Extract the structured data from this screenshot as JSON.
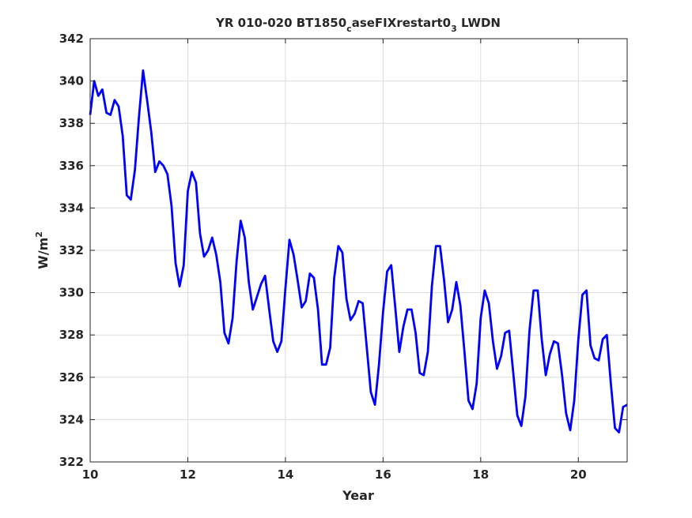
{
  "chart_data": {
    "type": "line",
    "title": {
      "main": "YR 010-020 BT1850",
      "sub1": "c",
      "mid": "aseFIXrestart0",
      "sub2": "3",
      "end": " LWDN"
    },
    "xlabel": "Year",
    "ylabel": {
      "base": "W/m",
      "sup": "2"
    },
    "xlim": [
      10,
      21
    ],
    "ylim": [
      322,
      342
    ],
    "xticks": [
      10,
      12,
      14,
      16,
      18,
      20
    ],
    "yticks": [
      322,
      324,
      326,
      328,
      330,
      332,
      334,
      336,
      338,
      340,
      342
    ],
    "grid": true,
    "series": [
      {
        "color": "#0000ff",
        "x": [
          10.0,
          10.083,
          10.167,
          10.25,
          10.333,
          10.417,
          10.5,
          10.583,
          10.667,
          10.75,
          10.833,
          10.917,
          11.0,
          11.083,
          11.167,
          11.25,
          11.333,
          11.417,
          11.5,
          11.583,
          11.667,
          11.75,
          11.833,
          11.917,
          12.0,
          12.083,
          12.167,
          12.25,
          12.333,
          12.417,
          12.5,
          12.583,
          12.667,
          12.75,
          12.833,
          12.917,
          13.0,
          13.083,
          13.167,
          13.25,
          13.333,
          13.417,
          13.5,
          13.583,
          13.667,
          13.75,
          13.833,
          13.917,
          14.0,
          14.083,
          14.167,
          14.25,
          14.333,
          14.417,
          14.5,
          14.583,
          14.667,
          14.75,
          14.833,
          14.917,
          15.0,
          15.083,
          15.167,
          15.25,
          15.333,
          15.417,
          15.5,
          15.583,
          15.667,
          15.75,
          15.833,
          15.917,
          16.0,
          16.083,
          16.167,
          16.25,
          16.333,
          16.417,
          16.5,
          16.583,
          16.667,
          16.75,
          16.833,
          16.917,
          17.0,
          17.083,
          17.167,
          17.25,
          17.333,
          17.417,
          17.5,
          17.583,
          17.667,
          17.75,
          17.833,
          17.917,
          18.0,
          18.083,
          18.167,
          18.25,
          18.333,
          18.417,
          18.5,
          18.583,
          18.667,
          18.75,
          18.833,
          18.917,
          19.0,
          19.083,
          19.167,
          19.25,
          19.333,
          19.417,
          19.5,
          19.583,
          19.667,
          19.75,
          19.833,
          19.917,
          20.0,
          20.083,
          20.167,
          20.25,
          20.333,
          20.417,
          20.5,
          20.583,
          20.667,
          20.75,
          20.833,
          20.917,
          21.0
        ],
        "y": [
          338.4,
          340.0,
          339.3,
          339.6,
          338.5,
          338.4,
          339.1,
          338.8,
          337.4,
          334.6,
          334.4,
          335.8,
          338.3,
          340.5,
          339.1,
          337.6,
          335.7,
          336.2,
          336.0,
          335.6,
          334.1,
          331.4,
          330.3,
          331.3,
          334.8,
          335.7,
          335.2,
          332.8,
          331.7,
          332.0,
          332.6,
          331.8,
          330.5,
          328.1,
          327.6,
          328.8,
          331.5,
          333.4,
          332.6,
          330.5,
          329.2,
          329.8,
          330.4,
          330.8,
          329.2,
          327.7,
          327.2,
          327.7,
          330.2,
          332.5,
          331.8,
          330.6,
          329.3,
          329.6,
          330.9,
          330.7,
          329.2,
          326.6,
          326.6,
          327.4,
          330.7,
          332.2,
          331.9,
          329.7,
          328.7,
          329.0,
          329.6,
          329.5,
          327.4,
          325.3,
          324.7,
          326.6,
          329.1,
          331.0,
          331.3,
          329.3,
          327.2,
          328.4,
          329.2,
          329.2,
          328.1,
          326.2,
          326.1,
          327.2,
          330.3,
          332.2,
          332.2,
          330.6,
          328.6,
          329.2,
          330.5,
          329.4,
          327.2,
          324.9,
          324.5,
          325.7,
          328.8,
          330.1,
          329.5,
          327.7,
          326.4,
          327.0,
          328.1,
          328.2,
          326.2,
          324.2,
          323.7,
          325.1,
          328.2,
          330.1,
          330.1,
          327.8,
          326.1,
          327.1,
          327.7,
          327.6,
          326.1,
          324.3,
          323.5,
          324.9,
          327.8,
          329.9,
          330.1,
          327.5,
          326.9,
          326.8,
          327.8,
          328.0,
          325.7,
          323.6,
          323.4,
          324.6,
          324.7
        ]
      }
    ]
  }
}
